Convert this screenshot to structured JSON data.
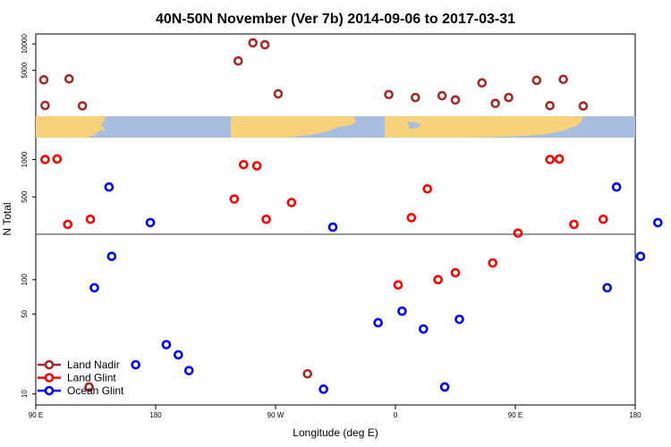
{
  "chart_data": {
    "type": "scatter",
    "title": "40N-50N November (Ver 7b)   2014-09-06 to 2017-03-31",
    "xlabel": "Longitude (deg E)",
    "ylabel": "N Total",
    "x_ticks": [
      {
        "value": 90,
        "label": "90 E"
      },
      {
        "value": 180,
        "label": "180"
      },
      {
        "value": 270,
        "label": "90 W"
      },
      {
        "value": 360,
        "label": "0"
      },
      {
        "value": 450,
        "label": "90 E"
      },
      {
        "value": 540,
        "label": "180"
      }
    ],
    "xlim": [
      90,
      540
    ],
    "lower_panel": {
      "scale": "log",
      "ylim": [
        8,
        250
      ],
      "y_ticks": [
        {
          "value": 10,
          "label": "10"
        },
        {
          "value": 50,
          "label": "50"
        },
        {
          "value": 100,
          "label": "100"
        }
      ]
    },
    "middle_panel": {
      "scale": "log",
      "ylim": [
        250,
        1500
      ],
      "y_ticks": [
        {
          "value": 500,
          "label": "500"
        },
        {
          "value": 1000,
          "label": "1000"
        }
      ]
    },
    "upper_panel": {
      "scale": "log",
      "ylim": [
        1500,
        13000
      ],
      "y_ticks": [
        {
          "value": 5000,
          "label": "5000"
        },
        {
          "value": 10000,
          "label": "10000"
        }
      ]
    },
    "legend_position": "bottom-left",
    "series": [
      {
        "name": "Land Nadir",
        "color": "#a52a2a",
        "points": [
          [
            96,
            3900
          ],
          [
            97,
            1990
          ],
          [
            115,
            4000
          ],
          [
            125,
            1970
          ],
          [
            242,
            6400
          ],
          [
            253,
            10300
          ],
          [
            262,
            9800
          ],
          [
            272,
            2700
          ],
          [
            355,
            2650
          ],
          [
            375,
            2450
          ],
          [
            395,
            2570
          ],
          [
            405,
            2300
          ],
          [
            425,
            3600
          ],
          [
            435,
            2100
          ],
          [
            445,
            2450
          ],
          [
            466,
            3850
          ],
          [
            476,
            1980
          ],
          [
            486,
            3950
          ],
          [
            501,
            1960
          ],
          [
            130,
            11.5
          ],
          [
            294,
            15
          ]
        ]
      },
      {
        "name": "Land Glint",
        "color": "#ff0000",
        "points": [
          [
            97,
            1000
          ],
          [
            106,
            1010
          ],
          [
            114,
            300
          ],
          [
            131,
            330
          ],
          [
            239,
            480
          ],
          [
            246,
            910
          ],
          [
            256,
            890
          ],
          [
            263,
            330
          ],
          [
            282,
            450
          ],
          [
            362,
            90
          ],
          [
            372,
            340
          ],
          [
            384,
            580
          ],
          [
            476,
            1000
          ],
          [
            483,
            1010
          ],
          [
            494,
            300
          ],
          [
            516,
            330
          ],
          [
            392,
            100
          ],
          [
            405,
            115
          ],
          [
            433,
            140
          ],
          [
            452,
            255
          ]
        ]
      },
      {
        "name": "Ocean Glint",
        "color": "#0000ff",
        "points": [
          [
            145,
            600
          ],
          [
            176,
            310
          ],
          [
            147,
            160
          ],
          [
            134,
            85
          ],
          [
            165,
            18
          ],
          [
            197,
            22
          ],
          [
            188,
            27
          ],
          [
            205,
            16
          ],
          [
            313,
            285
          ],
          [
            306,
            11
          ],
          [
            347,
            42
          ],
          [
            397,
            11.5
          ],
          [
            365,
            53
          ],
          [
            381,
            37
          ],
          [
            408,
            45
          ],
          [
            526,
            600
          ],
          [
            519,
            85
          ],
          [
            557,
            310
          ],
          [
            544,
            160
          ]
        ]
      }
    ]
  }
}
